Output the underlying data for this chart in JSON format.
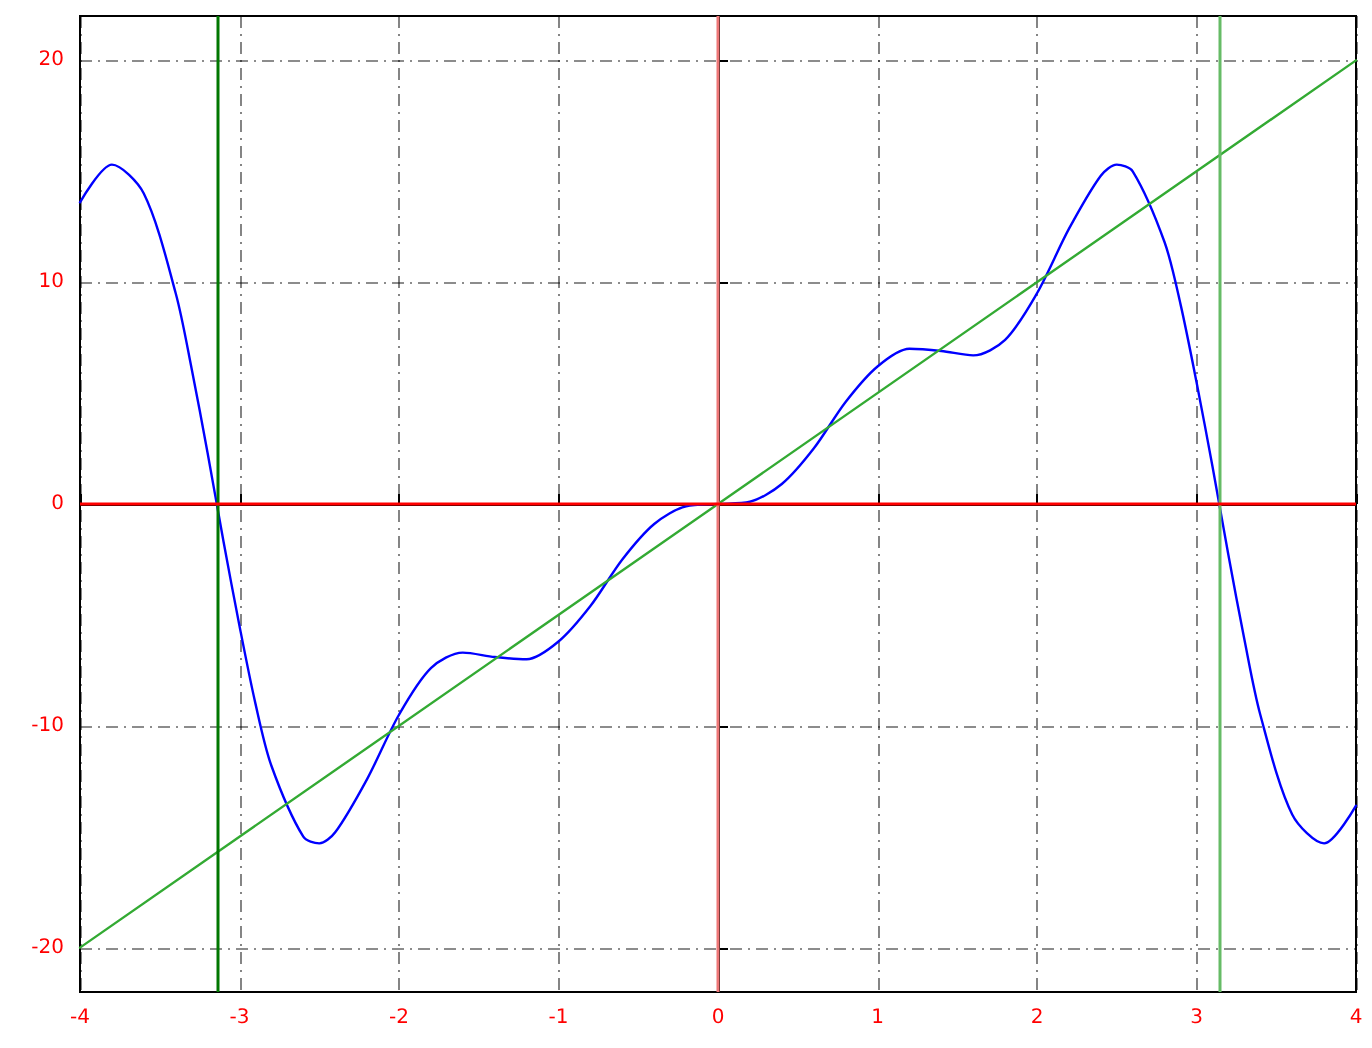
{
  "chart_data": {
    "type": "line",
    "series": [
      {
        "color": "#0000ff",
        "x": [
          -4,
          -3.8,
          -3.6,
          -3.4,
          -3.3,
          -3.2,
          -3.1,
          -3,
          -2.9,
          -2.8,
          -2.6,
          -2.5,
          -2.4,
          -2.2,
          -2,
          -1.8,
          -1.6,
          -1.4,
          -1.2,
          -1,
          -0.8,
          -0.6,
          -0.4,
          -0.2,
          0,
          0.2,
          0.4,
          0.6,
          0.8,
          1,
          1.2,
          1.4,
          1.6,
          1.8,
          2,
          2.2,
          2.4,
          2.5,
          2.6,
          2.8,
          2.9,
          3,
          3.1,
          3.2,
          3.3,
          3.4,
          3.6,
          3.8,
          4
        ],
        "values": [
          13.6,
          15.3,
          14.0,
          9.5,
          6.1,
          2.3,
          -1.7,
          -5.5,
          -9.0,
          -11.8,
          -15.0,
          -15.3,
          -14.8,
          -12.4,
          -9.5,
          -7.4,
          -6.7,
          -6.9,
          -7.0,
          -6.2,
          -4.6,
          -2.5,
          -0.9,
          -0.1,
          0,
          0.1,
          0.9,
          2.5,
          4.6,
          6.2,
          7.0,
          6.9,
          6.7,
          7.4,
          9.5,
          12.4,
          14.8,
          15.3,
          15.0,
          11.8,
          9.0,
          5.5,
          1.7,
          -2.3,
          -6.1,
          -9.5,
          -14.0,
          -15.3,
          -13.6
        ]
      },
      {
        "color": "#33aa33",
        "x": [
          -4,
          4
        ],
        "values": [
          -20,
          20
        ]
      }
    ],
    "xlim": [
      -4,
      4
    ],
    "ylim": [
      -22,
      22
    ],
    "xticks": [
      -4,
      -3,
      -2,
      -1,
      0,
      1,
      2,
      3,
      4
    ],
    "yticks": [
      -20,
      -10,
      0,
      10,
      20
    ],
    "grid": true,
    "marker": "none",
    "line_style": "solid",
    "ref_lines": [
      {
        "axis": "x",
        "value": -3.14,
        "color": "#007700"
      },
      {
        "axis": "x",
        "value": 3.14,
        "color": "#66bb66"
      },
      {
        "axis": "x",
        "value": 0,
        "color": "#ee7777"
      },
      {
        "axis": "y",
        "value": 0,
        "color": "#ff0000"
      }
    ]
  }
}
